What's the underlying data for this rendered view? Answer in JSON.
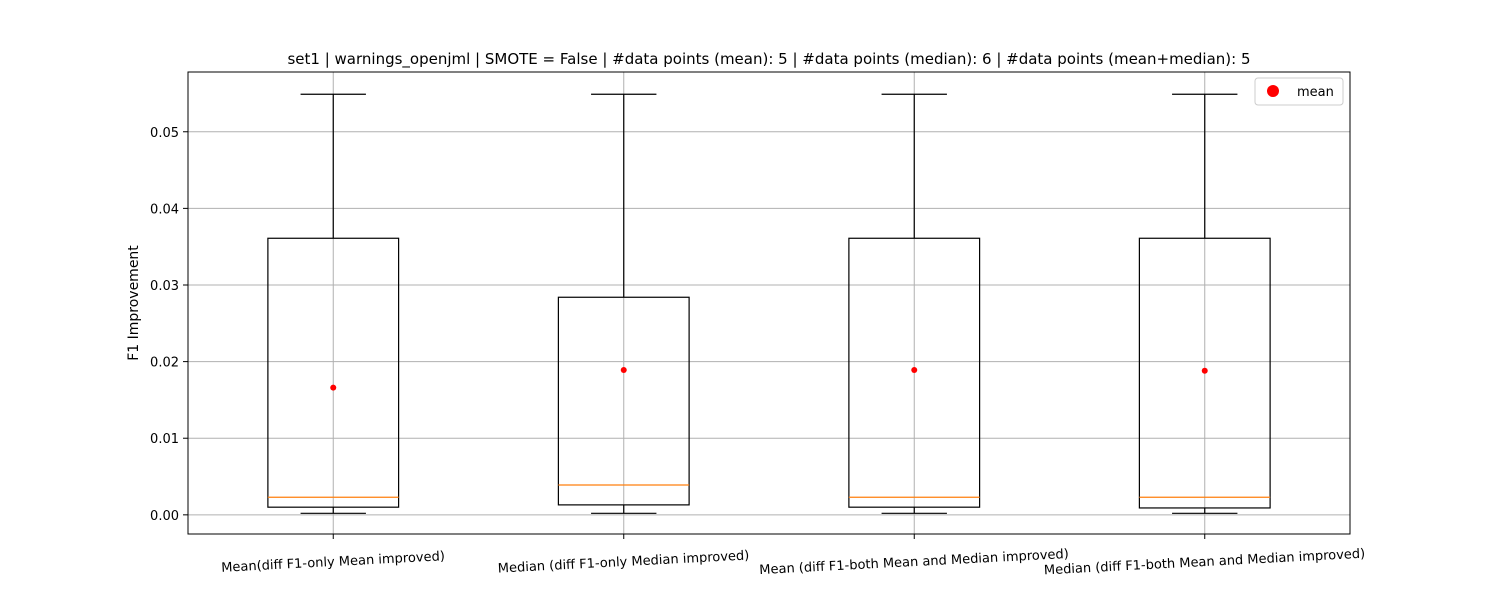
{
  "chart_data": {
    "type": "box",
    "title": "set1 | warnings_openjml | SMOTE = False | #data points (mean): 5 | #data points (median): 6 | #data points (mean+median): 5",
    "xlabel": "",
    "ylabel": "F1 Improvement",
    "ylim": [
      -0.0025,
      0.0578
    ],
    "yticks": [
      0.0,
      0.01,
      0.02,
      0.03,
      0.04,
      0.05
    ],
    "ytick_labels": [
      "0.00",
      "0.01",
      "0.02",
      "0.03",
      "0.04",
      "0.05"
    ],
    "grid": true,
    "legend": {
      "position": "top-right",
      "entries": [
        "mean"
      ]
    },
    "categories": [
      "Mean(diff F1-only Mean improved)",
      "Median (diff F1-only Median improved)",
      "Mean (diff F1-both Mean and Median improved)",
      "Median (diff F1-both Mean and Median improved)"
    ],
    "boxes": [
      {
        "whisker_low": 0.0002,
        "q1": 0.001,
        "median": 0.0023,
        "q3": 0.0361,
        "whisker_high": 0.0549,
        "mean": 0.0166
      },
      {
        "whisker_low": 0.0002,
        "q1": 0.0013,
        "median": 0.0039,
        "q3": 0.0284,
        "whisker_high": 0.0549,
        "mean": 0.0189
      },
      {
        "whisker_low": 0.0002,
        "q1": 0.001,
        "median": 0.0023,
        "q3": 0.0361,
        "whisker_high": 0.0549,
        "mean": 0.0189
      },
      {
        "whisker_low": 0.0002,
        "q1": 0.0009,
        "median": 0.0023,
        "q3": 0.0361,
        "whisker_high": 0.0549,
        "mean": 0.0188
      }
    ],
    "colors": {
      "box": "#000000",
      "median": "#ff7f0e",
      "mean": "#ff0000",
      "grid": "#b0b0b0"
    }
  }
}
